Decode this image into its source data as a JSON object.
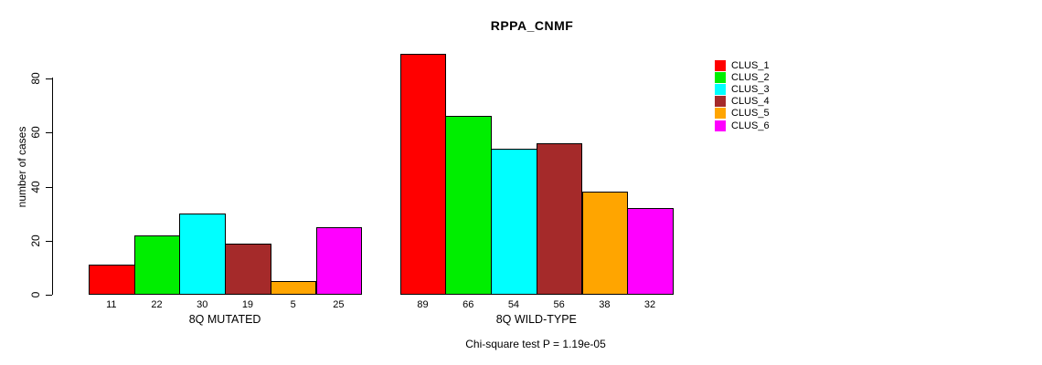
{
  "chart_data": {
    "type": "bar",
    "title": "RPPA_CNMF",
    "ylabel": "number of cases",
    "xlabel": "",
    "ylim": [
      0,
      89
    ],
    "yticks": [
      0,
      20,
      40,
      60,
      80
    ],
    "grid": false,
    "legend_position": "right-inside",
    "categories": [
      "8Q MUTATED",
      "8Q WILD-TYPE"
    ],
    "series": [
      {
        "name": "CLUS_1",
        "color": "#FF0000",
        "values": [
          11,
          89
        ]
      },
      {
        "name": "CLUS_2",
        "color": "#00EE00",
        "values": [
          22,
          66
        ]
      },
      {
        "name": "CLUS_3",
        "color": "#00FFFF",
        "values": [
          30,
          54
        ]
      },
      {
        "name": "CLUS_4",
        "color": "#A52A2A",
        "values": [
          19,
          56
        ]
      },
      {
        "name": "CLUS_5",
        "color": "#FFA500",
        "values": [
          5,
          38
        ]
      },
      {
        "name": "CLUS_6",
        "color": "#FF00FF",
        "values": [
          25,
          32
        ]
      }
    ],
    "bar_value_labels_shown": true,
    "caption": "Chi-square test P = 1.19e-05"
  }
}
